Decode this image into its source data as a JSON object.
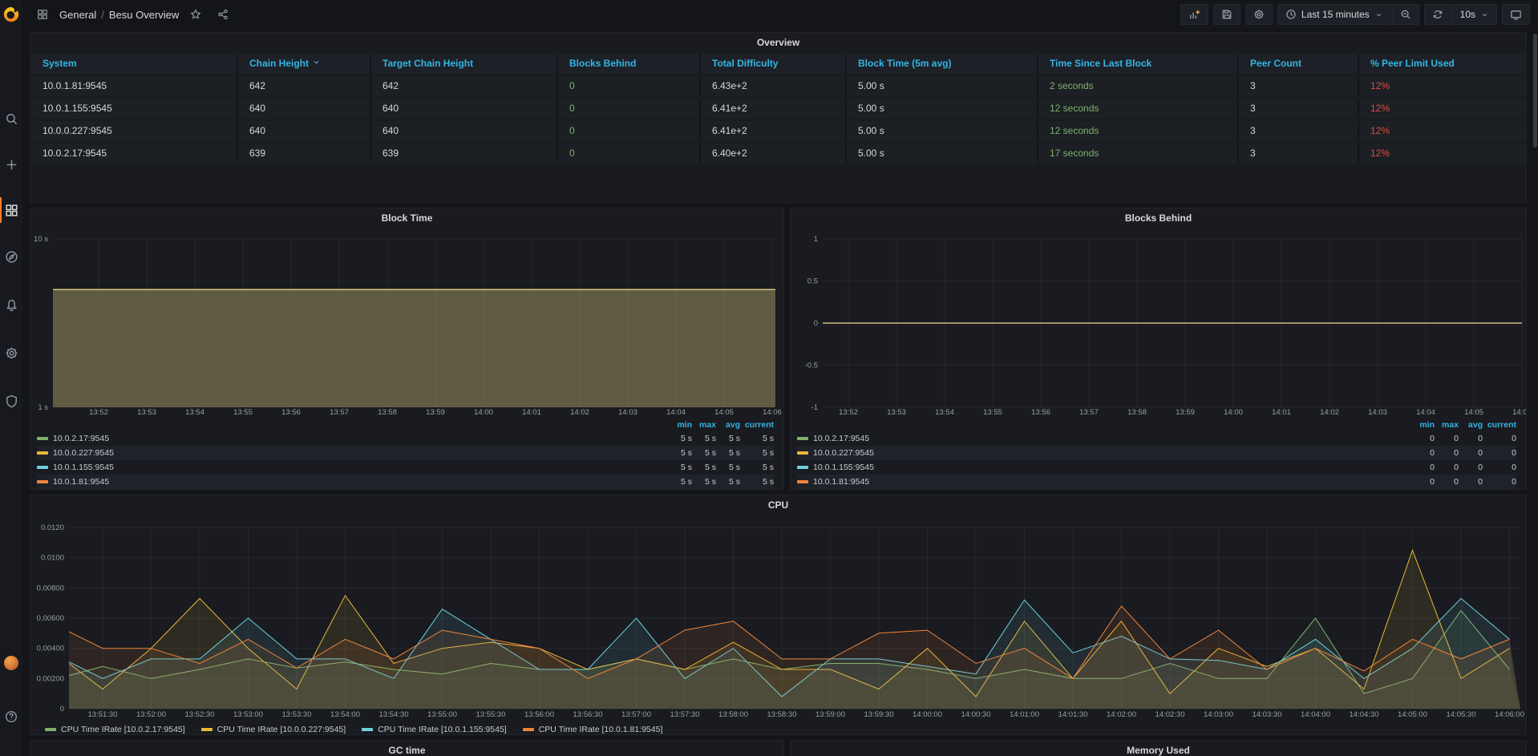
{
  "nav": {
    "breadcrumb": {
      "section": "General",
      "separator": "/",
      "title": "Besu Overview"
    },
    "time_range_label": "Last 15 minutes",
    "refresh_interval_label": "10s"
  },
  "sidebar": {
    "items": [
      {
        "id": "search",
        "icon": "search-icon"
      },
      {
        "id": "create",
        "icon": "plus-icon"
      },
      {
        "id": "dashboards",
        "icon": "apps-icon",
        "active": true
      },
      {
        "id": "explore",
        "icon": "compass-icon"
      },
      {
        "id": "alerting",
        "icon": "bell-icon"
      },
      {
        "id": "configuration",
        "icon": "gear-icon"
      },
      {
        "id": "server-admin",
        "icon": "shield-icon"
      }
    ],
    "bottom_items": [
      {
        "id": "profile",
        "icon": "avatar"
      },
      {
        "id": "help",
        "icon": "question-circle-icon"
      }
    ]
  },
  "overview": {
    "title": "Overview",
    "columns": [
      {
        "label": "System",
        "sorted": false
      },
      {
        "label": "Chain Height",
        "sorted": true
      },
      {
        "label": "Target Chain Height",
        "sorted": false
      },
      {
        "label": "Blocks Behind",
        "sorted": false
      },
      {
        "label": "Total Difficulty",
        "sorted": false
      },
      {
        "label": "Block Time (5m avg)",
        "sorted": false
      },
      {
        "label": "Time Since Last Block",
        "sorted": false
      },
      {
        "label": "Peer Count",
        "sorted": false
      },
      {
        "label": "% Peer Limit Used",
        "sorted": false
      }
    ],
    "rows": [
      [
        "10.0.1.81:9545",
        "642",
        "642",
        "0",
        "6.43e+2",
        "5.00 s",
        "2 seconds",
        "3",
        "12%"
      ],
      [
        "10.0.1.155:9545",
        "640",
        "640",
        "0",
        "6.41e+2",
        "5.00 s",
        "12 seconds",
        "3",
        "12%"
      ],
      [
        "10.0.0.227:9545",
        "640",
        "640",
        "0",
        "6.41e+2",
        "5.00 s",
        "12 seconds",
        "3",
        "12%"
      ],
      [
        "10.0.2.17:9545",
        "639",
        "639",
        "0",
        "6.40e+2",
        "5.00 s",
        "17 seconds",
        "3",
        "12%"
      ]
    ]
  },
  "panels": {
    "block_time": {
      "title": "Block Time"
    },
    "blocks_behind": {
      "title": "Blocks Behind"
    },
    "cpu": {
      "title": "CPU"
    },
    "gc": {
      "title": "GC time"
    },
    "memory": {
      "title": "Memory Used"
    }
  },
  "colors": {
    "accent_blue": "#33b5e5",
    "green": "#7EB26D",
    "yellow": "#EAB839",
    "blue": "#6ED0E0",
    "orange": "#EF843C",
    "red": "#e24d42",
    "overlap_tan": "#d3bd7b"
  },
  "chart_data": [
    {
      "id": "block_time",
      "type": "area",
      "title": "Block Time",
      "yscale": "log10",
      "ylim": [
        1,
        10
      ],
      "yticks": [
        1,
        10
      ],
      "ytick_labels": [
        "1 s",
        "10 s"
      ],
      "x_ticks": [
        "13:52",
        "13:53",
        "13:54",
        "13:55",
        "13:56",
        "13:57",
        "13:58",
        "13:59",
        "14:00",
        "14:01",
        "14:02",
        "14:03",
        "14:04",
        "14:05",
        "14:06"
      ],
      "unit": "s",
      "grid": true,
      "legend_position": "bottom-table",
      "overlap_line_color": "#d3bd7b",
      "fill_opacity": 0.14,
      "series": [
        {
          "name": "10.0.2.17:9545",
          "color": "#7EB26D",
          "value_constant": 5
        },
        {
          "name": "10.0.0.227:9545",
          "color": "#EAB839",
          "value_constant": 5
        },
        {
          "name": "10.0.1.155:9545",
          "color": "#6ED0E0",
          "value_constant": 5
        },
        {
          "name": "10.0.1.81:9545",
          "color": "#EF843C",
          "value_constant": 5
        }
      ],
      "legend_stats": {
        "headers": [
          "min",
          "max",
          "avg",
          "current"
        ],
        "rows": [
          [
            "5 s",
            "5 s",
            "5 s",
            "5 s"
          ],
          [
            "5 s",
            "5 s",
            "5 s",
            "5 s"
          ],
          [
            "5 s",
            "5 s",
            "5 s",
            "5 s"
          ],
          [
            "5 s",
            "5 s",
            "5 s",
            "5 s"
          ]
        ]
      }
    },
    {
      "id": "blocks_behind",
      "type": "line",
      "title": "Blocks Behind",
      "yscale": "linear",
      "ylim": [
        -1,
        1
      ],
      "yticks": [
        -1,
        -0.5,
        0,
        0.5,
        1
      ],
      "ytick_labels": [
        "-1",
        "-0.5",
        "0",
        "0.5",
        "1"
      ],
      "x_ticks": [
        "13:52",
        "13:53",
        "13:54",
        "13:55",
        "13:56",
        "13:57",
        "13:58",
        "13:59",
        "14:00",
        "14:01",
        "14:02",
        "14:03",
        "14:04",
        "14:05",
        "14:06"
      ],
      "grid": true,
      "legend_position": "bottom-table",
      "overlap_line_color": "#d3bd7b",
      "fill_opacity": 0,
      "series": [
        {
          "name": "10.0.2.17:9545",
          "color": "#7EB26D",
          "value_constant": 0
        },
        {
          "name": "10.0.0.227:9545",
          "color": "#EAB839",
          "value_constant": 0
        },
        {
          "name": "10.0.1.155:9545",
          "color": "#6ED0E0",
          "value_constant": 0
        },
        {
          "name": "10.0.1.81:9545",
          "color": "#EF843C",
          "value_constant": 0
        }
      ],
      "legend_stats": {
        "headers": [
          "min",
          "max",
          "avg",
          "current"
        ],
        "rows": [
          [
            "0",
            "0",
            "0",
            "0"
          ],
          [
            "0",
            "0",
            "0",
            "0"
          ],
          [
            "0",
            "0",
            "0",
            "0"
          ],
          [
            "0",
            "0",
            "0",
            "0"
          ]
        ]
      }
    },
    {
      "id": "cpu",
      "type": "line",
      "title": "CPU",
      "yscale": "linear",
      "ylim": [
        0,
        0.012
      ],
      "yticks": [
        0,
        0.002,
        0.004,
        0.006,
        0.008,
        0.01,
        0.012
      ],
      "ytick_labels": [
        "0",
        "0.00200",
        "0.00400",
        "0.00600",
        "0.00800",
        "0.0100",
        "0.0120"
      ],
      "x_ticks": [
        "13:51:30",
        "13:52:00",
        "13:52:30",
        "13:53:00",
        "13:53:30",
        "13:54:00",
        "13:54:30",
        "13:55:00",
        "13:55:30",
        "13:56:00",
        "13:56:30",
        "13:57:00",
        "13:57:30",
        "13:58:00",
        "13:58:30",
        "13:59:00",
        "13:59:30",
        "14:00:00",
        "14:00:30",
        "14:01:00",
        "14:01:30",
        "14:02:00",
        "14:02:30",
        "14:03:00",
        "14:03:30",
        "14:04:00",
        "14:04:30",
        "14:05:00",
        "14:05:30",
        "14:06:00"
      ],
      "grid": true,
      "legend_position": "bottom-inline",
      "fill_opacity": 0.1,
      "series": [
        {
          "name": "CPU Time IRate [10.0.2.17:9545]",
          "color": "#7EB26D",
          "values": [
            0.0022,
            0.0028,
            0.002,
            0.0026,
            0.0033,
            0.0027,
            0.0031,
            0.0026,
            0.0023,
            0.003,
            0.0026,
            0.0026,
            0.0033,
            0.0026,
            0.0033,
            0.0026,
            0.003,
            0.003,
            0.0026,
            0.002,
            0.0026,
            0.002,
            0.002,
            0.003,
            0.002,
            0.002,
            0.006,
            0.001,
            0.002,
            0.0065,
            0.0026
          ]
        },
        {
          "name": "CPU Time IRate [10.0.0.227:9545]",
          "color": "#EAB839",
          "values": [
            0.003,
            0.0013,
            0.004,
            0.0073,
            0.004,
            0.0013,
            0.0075,
            0.003,
            0.004,
            0.0044,
            0.004,
            0.0026,
            0.0033,
            0.0026,
            0.0044,
            0.0026,
            0.0026,
            0.0013,
            0.004,
            0.0008,
            0.0058,
            0.002,
            0.0058,
            0.001,
            0.004,
            0.0028,
            0.004,
            0.0013,
            0.0105,
            0.002,
            0.004
          ]
        },
        {
          "name": "CPU Time IRate [10.0.1.155:9545]",
          "color": "#6ED0E0",
          "values": [
            0.0031,
            0.002,
            0.0033,
            0.0033,
            0.006,
            0.0033,
            0.0033,
            0.002,
            0.0066,
            0.0046,
            0.0026,
            0.0026,
            0.006,
            0.002,
            0.004,
            0.0008,
            0.0033,
            0.0033,
            0.0028,
            0.0023,
            0.0072,
            0.0037,
            0.0048,
            0.0033,
            0.0032,
            0.0026,
            0.0046,
            0.002,
            0.004,
            0.0073,
            0.0046
          ]
        },
        {
          "name": "CPU Time IRate [10.0.1.81:9545]",
          "color": "#EF843C",
          "values": [
            0.0051,
            0.004,
            0.004,
            0.003,
            0.0046,
            0.0027,
            0.0046,
            0.0033,
            0.0052,
            0.0046,
            0.004,
            0.002,
            0.0033,
            0.0052,
            0.0058,
            0.0033,
            0.0033,
            0.005,
            0.0052,
            0.003,
            0.004,
            0.002,
            0.0068,
            0.0033,
            0.0052,
            0.0026,
            0.004,
            0.0025,
            0.0046,
            0.0033,
            0.0046
          ]
        }
      ]
    }
  ]
}
